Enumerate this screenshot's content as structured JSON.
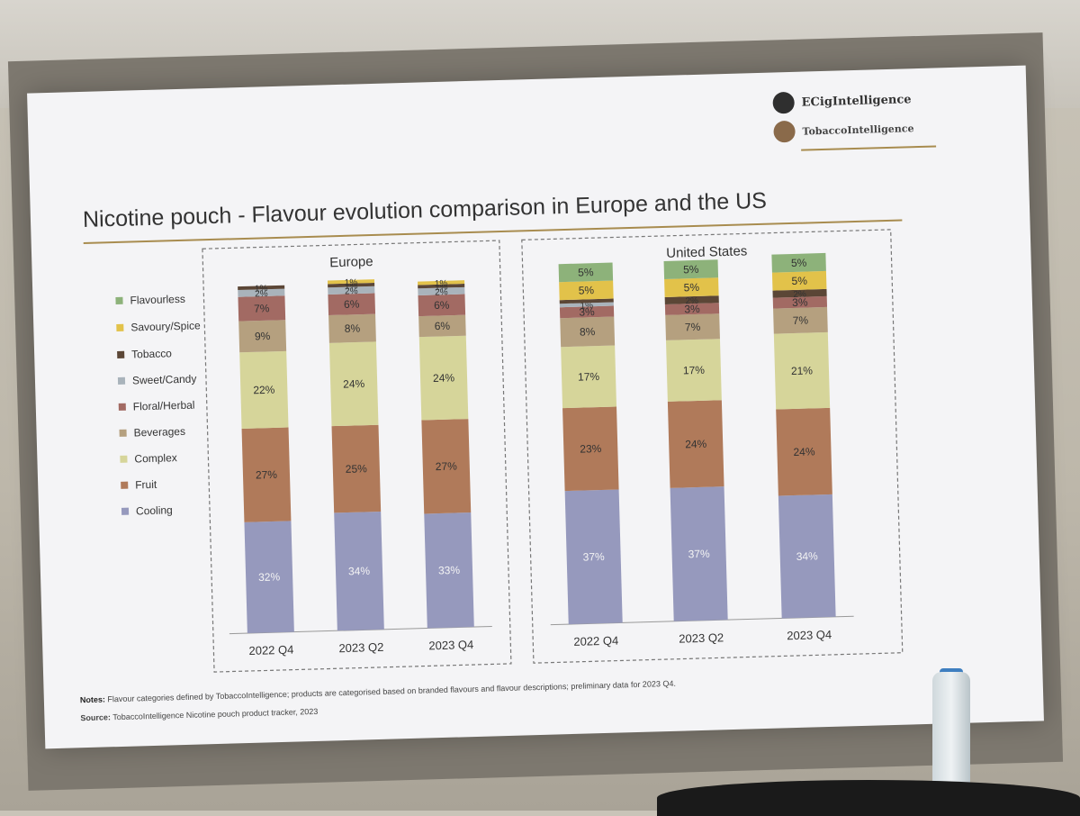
{
  "slide": {
    "title": "Nicotine pouch - Flavour evolution comparison in Europe and the US",
    "logo_line1": "ECigIntelligence",
    "logo_line2": "TobaccoIntelligence",
    "notes_label": "Notes:",
    "notes_text": "Flavour categories defined by TobaccoIntelligence; products are categorised based on branded flavours and flavour descriptions; preliminary data for 2023 Q4.",
    "source_label": "Source:",
    "source_text": "TobaccoIntelligence Nicotine pouch product tracker, 2023"
  },
  "legend": [
    {
      "name": "Flavourless",
      "color": "#8db27a"
    },
    {
      "name": "Savoury/Spice",
      "color": "#e2c24a"
    },
    {
      "name": "Tobacco",
      "color": "#5b4636"
    },
    {
      "name": "Sweet/Candy",
      "color": "#a9b3bb"
    },
    {
      "name": "Floral/Herbal",
      "color": "#a26a63"
    },
    {
      "name": "Beverages",
      "color": "#b5a07f"
    },
    {
      "name": "Complex",
      "color": "#d6d59a"
    },
    {
      "name": "Fruit",
      "color": "#b07a5a"
    },
    {
      "name": "Cooling",
      "color": "#9699bd"
    }
  ],
  "chart_data": [
    {
      "type": "bar",
      "stacked": true,
      "title": "Europe",
      "categories": [
        "2022 Q4",
        "2023 Q2",
        "2023 Q4"
      ],
      "series": [
        {
          "name": "Cooling",
          "values": [
            32,
            34,
            33
          ],
          "labels": [
            "32%",
            "34%",
            "33%"
          ]
        },
        {
          "name": "Fruit",
          "values": [
            27,
            25,
            27
          ],
          "labels": [
            "27%",
            "25%",
            "27%"
          ]
        },
        {
          "name": "Complex",
          "values": [
            22,
            24,
            24
          ],
          "labels": [
            "22%",
            "24%",
            "24%"
          ]
        },
        {
          "name": "Beverages",
          "values": [
            9,
            8,
            6
          ],
          "labels": [
            "9%",
            "8%",
            "6%"
          ]
        },
        {
          "name": "Floral/Herbal",
          "values": [
            7,
            6,
            6
          ],
          "labels": [
            "7%",
            "6%",
            "6%"
          ]
        },
        {
          "name": "Sweet/Candy",
          "values": [
            2,
            2,
            2
          ],
          "labels": [
            "2%",
            "2%",
            "2%"
          ]
        },
        {
          "name": "Tobacco",
          "values": [
            1,
            1,
            1
          ],
          "labels": [
            "1%",
            "1%",
            "1%"
          ]
        },
        {
          "name": "Savoury/Spice",
          "values": [
            0,
            1,
            1
          ],
          "labels": [
            "",
            "1%",
            "1%"
          ]
        },
        {
          "name": "Flavourless",
          "values": [
            0,
            0,
            0
          ],
          "labels": [
            "",
            "",
            ""
          ]
        }
      ],
      "ylim": [
        0,
        100
      ]
    },
    {
      "type": "bar",
      "stacked": true,
      "title": "United States",
      "categories": [
        "2022 Q4",
        "2023 Q2",
        "2023 Q4"
      ],
      "series": [
        {
          "name": "Cooling",
          "values": [
            37,
            37,
            34
          ],
          "labels": [
            "37%",
            "37%",
            "34%"
          ]
        },
        {
          "name": "Fruit",
          "values": [
            23,
            24,
            24
          ],
          "labels": [
            "23%",
            "24%",
            "24%"
          ]
        },
        {
          "name": "Complex",
          "values": [
            17,
            17,
            21
          ],
          "labels": [
            "17%",
            "17%",
            "21%"
          ]
        },
        {
          "name": "Beverages",
          "values": [
            8,
            7,
            7
          ],
          "labels": [
            "8%",
            "7%",
            "7%"
          ]
        },
        {
          "name": "Floral/Herbal",
          "values": [
            3,
            3,
            3
          ],
          "labels": [
            "3%",
            "3%",
            "3%"
          ]
        },
        {
          "name": "Sweet/Candy",
          "values": [
            1,
            0,
            0
          ],
          "labels": [
            "1%",
            "",
            ""
          ]
        },
        {
          "name": "Tobacco",
          "values": [
            1,
            2,
            2
          ],
          "labels": [
            "",
            "2%",
            "2%"
          ]
        },
        {
          "name": "Savoury/Spice",
          "values": [
            5,
            5,
            5
          ],
          "labels": [
            "5%",
            "5%",
            "5%"
          ]
        },
        {
          "name": "Flavourless",
          "values": [
            5,
            5,
            5
          ],
          "labels": [
            "5%",
            "5%",
            "5%"
          ]
        }
      ],
      "ylim": [
        0,
        100
      ]
    }
  ]
}
